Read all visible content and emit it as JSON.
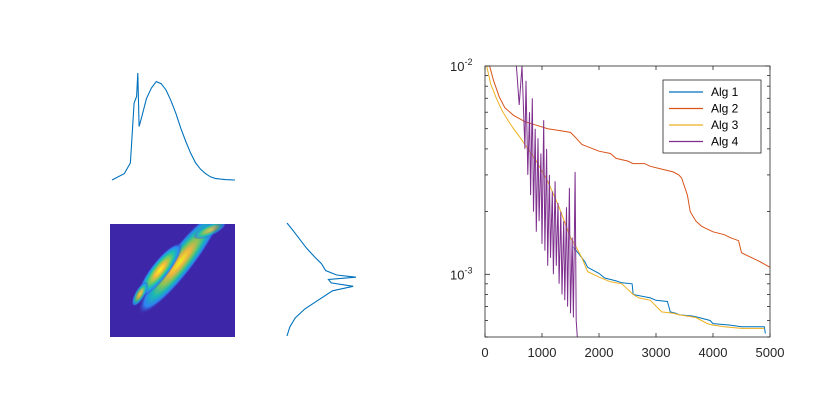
{
  "chart_data": [
    {
      "type": "line",
      "panel": "top-left marginal density",
      "xlabel": "",
      "ylabel": "",
      "series": [
        {
          "color": "#0072BD",
          "x": [
            0,
            0.1,
            0.15,
            0.18,
            0.2,
            0.21,
            0.22,
            0.24,
            0.28,
            0.32,
            0.36,
            0.4,
            0.44,
            0.48,
            0.52,
            0.56,
            0.6,
            0.64,
            0.68,
            0.72,
            0.76,
            0.8,
            0.84,
            0.88,
            0.92,
            0.96,
            1.0
          ],
          "y": [
            0,
            0.06,
            0.16,
            0.72,
            0.78,
            1.0,
            0.5,
            0.58,
            0.76,
            0.86,
            0.92,
            0.9,
            0.84,
            0.74,
            0.62,
            0.48,
            0.36,
            0.25,
            0.16,
            0.1,
            0.06,
            0.03,
            0.015,
            0.008,
            0.004,
            0.002,
            0.0
          ]
        }
      ]
    },
    {
      "type": "heatmap",
      "panel": "bottom-left joint density",
      "colormap": [
        "#3e26a8",
        "#2e87f7",
        "#17bfb5",
        "#81cc59",
        "#f5ba3d",
        "#f9fb15"
      ],
      "background": "#3e26a8"
    },
    {
      "type": "line",
      "panel": "bottom-middle marginal density (rotated)",
      "xlabel": "",
      "ylabel": "",
      "series": [
        {
          "color": "#0072BD",
          "y": [
            0,
            0.08,
            0.16,
            0.24,
            0.32,
            0.4,
            0.44,
            0.47,
            0.5,
            0.52,
            0.54,
            0.58,
            0.64,
            0.7,
            0.78,
            0.86,
            0.94,
            1.0
          ],
          "x": [
            0,
            0.04,
            0.12,
            0.26,
            0.46,
            0.66,
            0.96,
            0.64,
            0.6,
            1.0,
            0.72,
            0.56,
            0.5,
            0.4,
            0.28,
            0.18,
            0.08,
            0.0
          ]
        }
      ]
    },
    {
      "type": "line",
      "panel": "right convergence plot",
      "xlabel": "",
      "ylabel": "",
      "x_scale": "linear",
      "y_scale": "log",
      "xlim": [
        0,
        5000
      ],
      "ylim": [
        0.0005,
        0.01
      ],
      "xticks": [
        0,
        1000,
        2000,
        3000,
        4000,
        5000
      ],
      "xtick_labels": [
        "0",
        "1000",
        "2000",
        "3000",
        "4000",
        "5000"
      ],
      "ytick_labels": [
        {
          "base": "10",
          "exp": "-2"
        },
        {
          "base": "10",
          "exp": "-3"
        }
      ],
      "legend_position": "top-right",
      "series": [
        {
          "name": "Alg 1",
          "color": "#0072BD",
          "x": [
            1550,
            1650,
            1750,
            1800,
            2000,
            2100,
            2300,
            2400,
            2580,
            2600,
            2900,
            3000,
            3200,
            3250,
            3350,
            3400,
            3650,
            3750,
            3950,
            4000,
            4300,
            4500,
            4700,
            4900,
            4920
          ],
          "y": [
            0.00135,
            0.00125,
            0.00115,
            0.00108,
            0.00101,
            0.00096,
            0.00093,
            0.00091,
            0.0009,
            0.0008,
            0.00077,
            0.00075,
            0.00074,
            0.00066,
            0.00065,
            0.00064,
            0.00063,
            0.00062,
            0.0006,
            0.00058,
            0.00057,
            0.00056,
            0.00056,
            0.00056,
            0.00052
          ]
        },
        {
          "name": "Alg 2",
          "color": "#D95319",
          "x": [
            80,
            150,
            250,
            350,
            500,
            700,
            900,
            1100,
            1300,
            1500,
            1600,
            1700,
            1800,
            2000,
            2200,
            2300,
            2500,
            2600,
            2800,
            2900,
            3100,
            3300,
            3400,
            3450,
            3550,
            3600,
            3700,
            3800,
            4000,
            4200,
            4300,
            4450,
            4500,
            4600,
            4800,
            5000
          ],
          "y": [
            0.01,
            0.0085,
            0.0071,
            0.0063,
            0.0058,
            0.0054,
            0.0052,
            0.005,
            0.0049,
            0.0048,
            0.0045,
            0.0042,
            0.0041,
            0.0039,
            0.0038,
            0.0036,
            0.0035,
            0.0034,
            0.0034,
            0.0033,
            0.0032,
            0.0031,
            0.003,
            0.0029,
            0.0024,
            0.002,
            0.0018,
            0.0017,
            0.0016,
            0.00155,
            0.0015,
            0.00145,
            0.00127,
            0.00123,
            0.00116,
            0.00108
          ]
        },
        {
          "name": "Alg 3",
          "color": "#EDB120",
          "x": [
            30,
            100,
            200,
            300,
            400,
            500,
            600,
            700,
            900,
            1100,
            1300,
            1500,
            1600,
            1700,
            1800,
            2000,
            2200,
            2400,
            2600,
            2700,
            2900,
            3100,
            3300,
            3400,
            3700,
            3900,
            4000,
            4200,
            4500,
            4900
          ],
          "y": [
            0.01,
            0.0082,
            0.007,
            0.0061,
            0.0055,
            0.005,
            0.0046,
            0.0042,
            0.0035,
            0.0028,
            0.0021,
            0.0015,
            0.00135,
            0.0012,
            0.00103,
            0.00097,
            0.00092,
            0.0009,
            0.0008,
            0.00077,
            0.00075,
            0.00066,
            0.00065,
            0.00064,
            0.00062,
            0.00058,
            0.00057,
            0.00056,
            0.00055,
            0.00055
          ]
        },
        {
          "name": "Alg 4",
          "color": "#7E2F8E",
          "x": [
            550,
            600,
            650,
            700,
            720,
            750,
            780,
            800,
            830,
            850,
            880,
            900,
            930,
            950,
            980,
            1000,
            1030,
            1050,
            1080,
            1100,
            1130,
            1150,
            1180,
            1200,
            1230,
            1250,
            1280,
            1300,
            1330,
            1350,
            1380,
            1400,
            1430,
            1450,
            1480,
            1500,
            1530,
            1550,
            1580,
            1600,
            1620
          ],
          "y": [
            0.01,
            0.0065,
            0.01,
            0.004,
            0.0085,
            0.003,
            0.006,
            0.0024,
            0.007,
            0.002,
            0.005,
            0.0016,
            0.0045,
            0.0018,
            0.0038,
            0.0014,
            0.0055,
            0.0013,
            0.004,
            0.0011,
            0.003,
            0.0012,
            0.0025,
            0.001,
            0.0028,
            0.0011,
            0.0022,
            0.0009,
            0.002,
            0.0008,
            0.0018,
            0.00075,
            0.0021,
            0.0007,
            0.0026,
            0.00065,
            0.0015,
            0.00062,
            0.0031,
            0.0006,
            0.0005
          ]
        }
      ]
    }
  ]
}
